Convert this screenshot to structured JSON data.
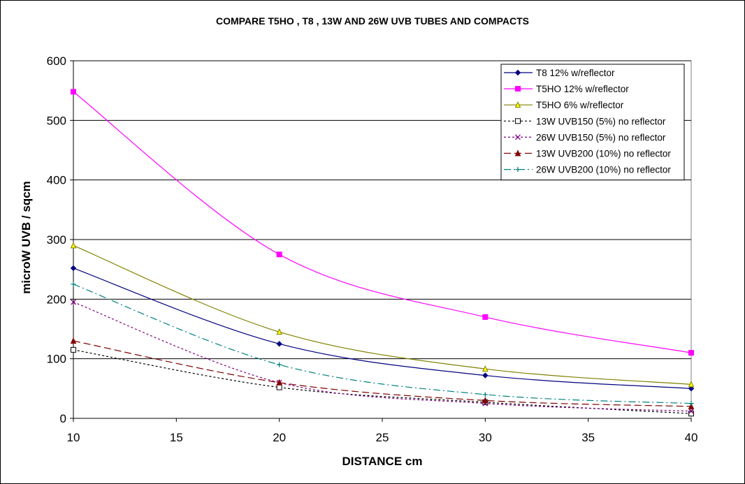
{
  "chart_data": {
    "type": "line",
    "title": "COMPARE T5HO , T8 , 13W AND 26W UVB TUBES AND COMPACTS",
    "xlabel": "DISTANCE cm",
    "ylabel": "microW UVB / sqcm",
    "xlim": [
      10,
      40
    ],
    "ylim": [
      0,
      600
    ],
    "xticks": [
      10,
      15,
      20,
      25,
      30,
      35,
      40
    ],
    "yticks": [
      0,
      100,
      200,
      300,
      400,
      500,
      600
    ],
    "grid": "horizontal",
    "legend": "top-right",
    "x": [
      10,
      20,
      30,
      40
    ],
    "series": [
      {
        "name": "T8 12% w/reflector",
        "values": [
          252,
          125,
          72,
          50
        ],
        "color": "#000080",
        "dash": "",
        "marker": "diamond"
      },
      {
        "name": "T5HO 12% w/reflector",
        "values": [
          548,
          275,
          170,
          110
        ],
        "color": "#ff00ff",
        "dash": "",
        "marker": "square"
      },
      {
        "name": "T5HO 6% w/reflector",
        "values": [
          290,
          145,
          83,
          57
        ],
        "color": "#808000",
        "dash": "",
        "marker": "triangle"
      },
      {
        "name": "13W UVB150 (5%) no reflector",
        "values": [
          115,
          52,
          27,
          8
        ],
        "color": "#000000",
        "dash": "3,3",
        "marker": "open-square"
      },
      {
        "name": "26W UVB150 (5%) no reflector",
        "values": [
          195,
          60,
          25,
          12
        ],
        "color": "#800080",
        "dash": "3,3",
        "marker": "x"
      },
      {
        "name": "13W UVB200 (10%) no reflector",
        "values": [
          130,
          60,
          30,
          20
        ],
        "color": "#800000",
        "dash": "10,5",
        "marker": "triangle"
      },
      {
        "name": "26W UVB200 (10%) no reflector",
        "values": [
          225,
          90,
          40,
          25
        ],
        "color": "#008080",
        "dash": "10,4,2,4",
        "marker": "plus"
      }
    ]
  }
}
